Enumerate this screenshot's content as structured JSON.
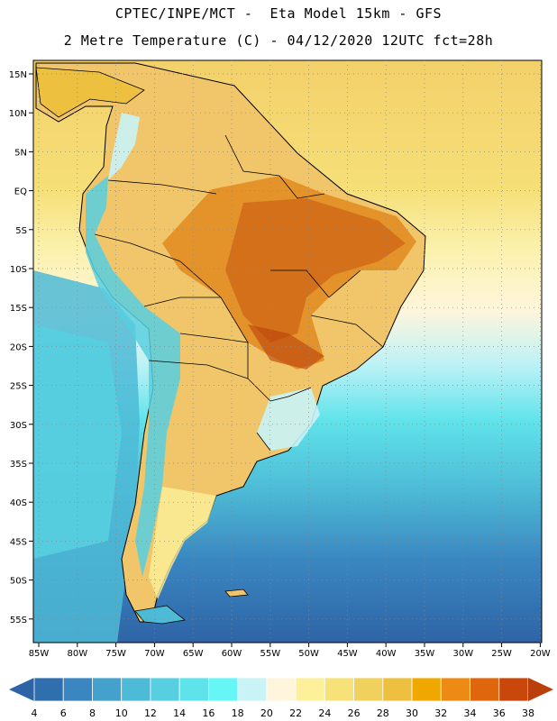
{
  "header": {
    "title_line1": "CPTEC/INPE/MCT -  Eta Model 15km - GFS",
    "title_line2": "2 Metre Temperature (C) - 04/12/2020 12UTC fct=28h"
  },
  "map": {
    "lat_labels": [
      "15N",
      "10N",
      "5N",
      "EQ",
      "5S",
      "10S",
      "15S",
      "20S",
      "25S",
      "30S",
      "35S",
      "40S",
      "45S",
      "50S",
      "55S"
    ],
    "lon_labels": [
      "85W",
      "80W",
      "75W",
      "70W",
      "65W",
      "60W",
      "55W",
      "50W",
      "45W",
      "40W",
      "35W",
      "30W",
      "25W",
      "20W"
    ]
  },
  "colorbar": {
    "labels": [
      "4",
      "6",
      "8",
      "10",
      "12",
      "14",
      "16",
      "18",
      "20",
      "22",
      "24",
      "26",
      "28",
      "30",
      "32",
      "34",
      "36",
      "38"
    ],
    "low_extend_color": "#2e64a6",
    "high_extend_color": "#b9400a",
    "colors": [
      "#2f6fad",
      "#3a86c0",
      "#44a1cc",
      "#4dbad6",
      "#57cfe0",
      "#5fe3ea",
      "#66f6f6",
      "#c9f3f7",
      "#fff5dc",
      "#fdf09a",
      "#f7e27a",
      "#f1d15e",
      "#edc040",
      "#f0a800",
      "#ec8a14",
      "#e0660e",
      "#c9470a"
    ]
  },
  "colors": {
    "land_base": "#f1c66a",
    "ocean_warm": "#f4dc6e",
    "ocean_cold": "#2f6fad",
    "coast": "#000000"
  }
}
